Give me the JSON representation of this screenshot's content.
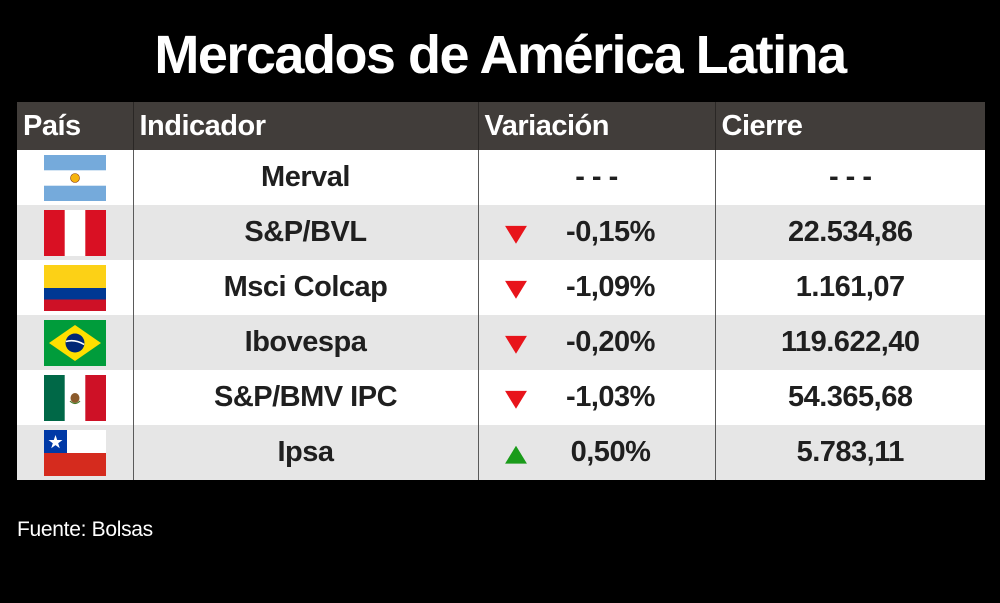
{
  "title": "Mercados de América Latina",
  "source": "Fuente: Bolsas",
  "colors": {
    "down": "#e8141b",
    "up": "#1a9b1a",
    "header_bg": "#413d3a",
    "row_alt": "#e6e6e6"
  },
  "chart_data": {
    "type": "table",
    "columns": [
      "País",
      "Indicador",
      "Variación",
      "Cierre"
    ],
    "rows": [
      {
        "flag": "argentina-flag",
        "indicator": "Merval",
        "variation": "- - -",
        "close": "- - -",
        "direction": "none"
      },
      {
        "flag": "peru-flag",
        "indicator": "S&P/BVL",
        "variation": "-0,15%",
        "close": "22.534,86",
        "direction": "down"
      },
      {
        "flag": "colombia-flag",
        "indicator": "Msci Colcap",
        "variation": "-1,09%",
        "close": "1.161,07",
        "direction": "down"
      },
      {
        "flag": "brazil-flag",
        "indicator": "Ibovespa",
        "variation": "-0,20%",
        "close": "119.622,40",
        "direction": "down"
      },
      {
        "flag": "mexico-flag",
        "indicator": "S&P/BMV IPC",
        "variation": "-1,03%",
        "close": "54.365,68",
        "direction": "down"
      },
      {
        "flag": "chile-flag",
        "indicator": "Ipsa",
        "variation": "0,50%",
        "close": "5.783,11",
        "direction": "up"
      }
    ]
  }
}
